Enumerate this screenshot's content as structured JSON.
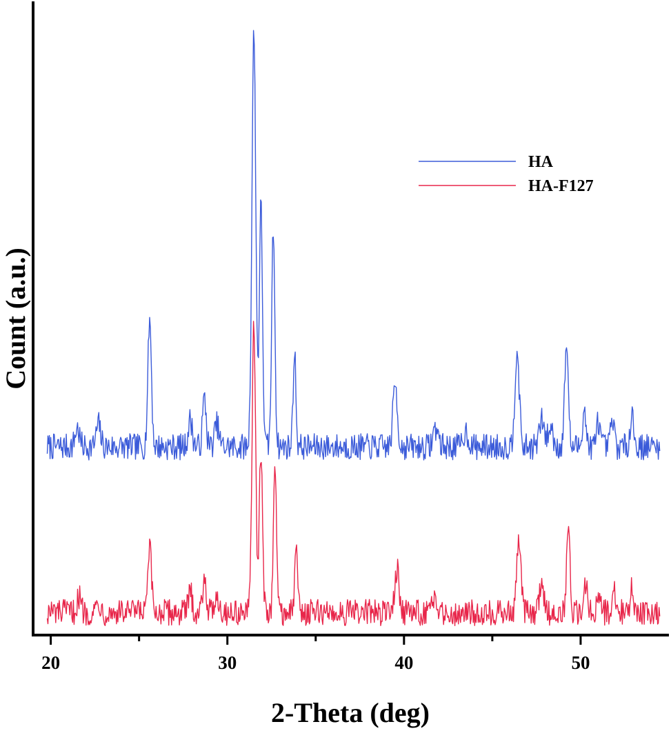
{
  "chart_data": {
    "type": "line",
    "title": "",
    "xlabel": "2-Theta (deg)",
    "ylabel": "Count (a.u.)",
    "xlim": [
      19.0,
      55.0
    ],
    "x_ticks": [
      20,
      30,
      40,
      50
    ],
    "x_minor_ticks": [
      25,
      35,
      45
    ],
    "y_ticks_shown": false,
    "grid": false,
    "legend_position": "top-right",
    "series": [
      {
        "name": "HA",
        "color": "#3b5bd9",
        "baseline": 5.0,
        "noise": 0.35,
        "peaks": [
          {
            "x": 21.5,
            "h": 0.5,
            "w": 0.12
          },
          {
            "x": 22.7,
            "h": 0.6,
            "w": 0.12
          },
          {
            "x": 25.6,
            "h": 3.4,
            "w": 0.1
          },
          {
            "x": 27.9,
            "h": 0.7,
            "w": 0.12
          },
          {
            "x": 28.7,
            "h": 1.3,
            "w": 0.1
          },
          {
            "x": 29.4,
            "h": 0.6,
            "w": 0.12
          },
          {
            "x": 31.5,
            "h": 11.0,
            "w": 0.11
          },
          {
            "x": 31.9,
            "h": 6.4,
            "w": 0.09
          },
          {
            "x": 32.6,
            "h": 5.8,
            "w": 0.09
          },
          {
            "x": 33.8,
            "h": 2.5,
            "w": 0.08
          },
          {
            "x": 39.5,
            "h": 1.7,
            "w": 0.12
          },
          {
            "x": 41.8,
            "h": 0.5,
            "w": 0.15
          },
          {
            "x": 43.5,
            "h": 0.4,
            "w": 0.15
          },
          {
            "x": 46.4,
            "h": 2.6,
            "w": 0.12
          },
          {
            "x": 47.8,
            "h": 0.7,
            "w": 0.14
          },
          {
            "x": 48.3,
            "h": 0.5,
            "w": 0.14
          },
          {
            "x": 49.2,
            "h": 2.8,
            "w": 0.1
          },
          {
            "x": 50.2,
            "h": 1.0,
            "w": 0.1
          },
          {
            "x": 51.0,
            "h": 0.7,
            "w": 0.1
          },
          {
            "x": 51.8,
            "h": 0.7,
            "w": 0.1
          },
          {
            "x": 52.9,
            "h": 0.9,
            "w": 0.1
          }
        ]
      },
      {
        "name": "HA-F127",
        "color": "#e8264a",
        "baseline": 0.6,
        "noise": 0.35,
        "peaks": [
          {
            "x": 21.6,
            "h": 0.4,
            "w": 0.12
          },
          {
            "x": 22.7,
            "h": 0.3,
            "w": 0.12
          },
          {
            "x": 25.6,
            "h": 1.7,
            "w": 0.1
          },
          {
            "x": 27.9,
            "h": 0.5,
            "w": 0.12
          },
          {
            "x": 28.7,
            "h": 1.0,
            "w": 0.1
          },
          {
            "x": 29.4,
            "h": 0.5,
            "w": 0.12
          },
          {
            "x": 31.5,
            "h": 7.8,
            "w": 0.1
          },
          {
            "x": 31.9,
            "h": 4.3,
            "w": 0.09
          },
          {
            "x": 32.7,
            "h": 3.8,
            "w": 0.09
          },
          {
            "x": 33.9,
            "h": 1.8,
            "w": 0.08
          },
          {
            "x": 39.6,
            "h": 1.2,
            "w": 0.12
          },
          {
            "x": 41.8,
            "h": 0.3,
            "w": 0.15
          },
          {
            "x": 46.5,
            "h": 1.9,
            "w": 0.12
          },
          {
            "x": 47.8,
            "h": 0.6,
            "w": 0.14
          },
          {
            "x": 49.3,
            "h": 2.1,
            "w": 0.1
          },
          {
            "x": 50.3,
            "h": 0.8,
            "w": 0.1
          },
          {
            "x": 51.0,
            "h": 0.6,
            "w": 0.1
          },
          {
            "x": 51.9,
            "h": 0.6,
            "w": 0.1
          },
          {
            "x": 52.9,
            "h": 0.6,
            "w": 0.1
          }
        ]
      }
    ]
  }
}
